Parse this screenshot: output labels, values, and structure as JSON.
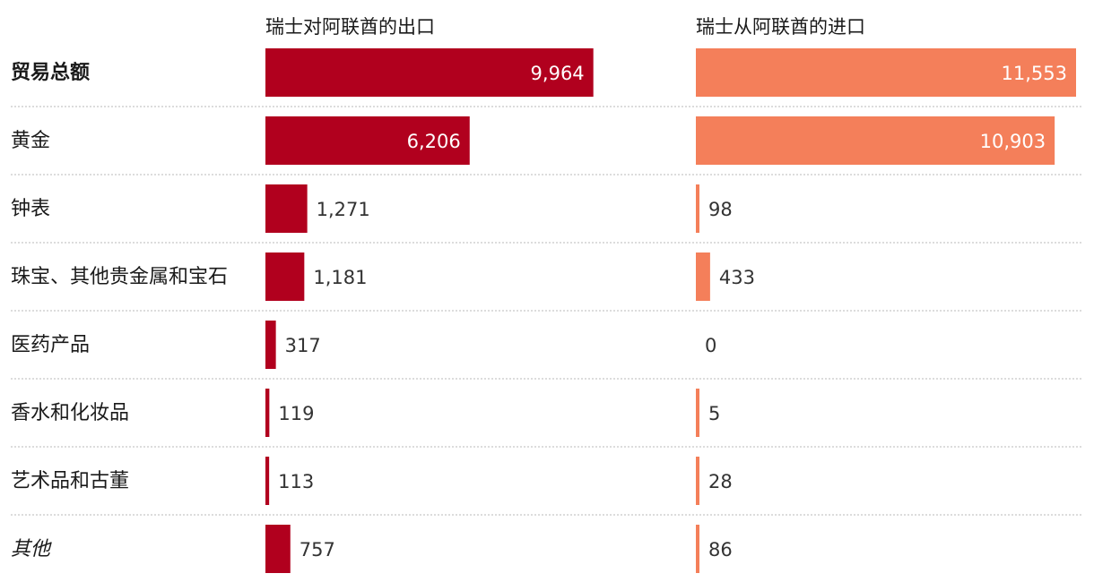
{
  "chart_data": {
    "type": "bar",
    "orientation": "horizontal",
    "categories": [
      "贸易总额",
      "黄金",
      "钟表",
      "珠宝、其他贵金属和宝石",
      "医药产品",
      "香水和化妆品",
      "艺术品和古董",
      "其他"
    ],
    "category_styles": [
      "bold",
      "normal",
      "normal",
      "normal",
      "normal",
      "normal",
      "normal",
      "italic"
    ],
    "series": [
      {
        "name": "瑞士对阿联酋的出口",
        "color": "#b1001e",
        "values": [
          9964,
          6206,
          1271,
          1181,
          317,
          119,
          113,
          757
        ],
        "labels": [
          "9,964",
          "6,206",
          "1,271",
          "1,181",
          "317",
          "119",
          "113",
          "757"
        ]
      },
      {
        "name": "瑞士从阿联酋的进口",
        "color": "#f47f5a",
        "values": [
          11553,
          10903,
          98,
          433,
          0,
          5,
          28,
          86
        ],
        "labels": [
          "11,553",
          "10,903",
          "98",
          "433",
          "0",
          "5",
          "28",
          "86"
        ]
      }
    ],
    "xlim": [
      0,
      11553
    ],
    "grid": false,
    "legend": "column headers at top"
  }
}
